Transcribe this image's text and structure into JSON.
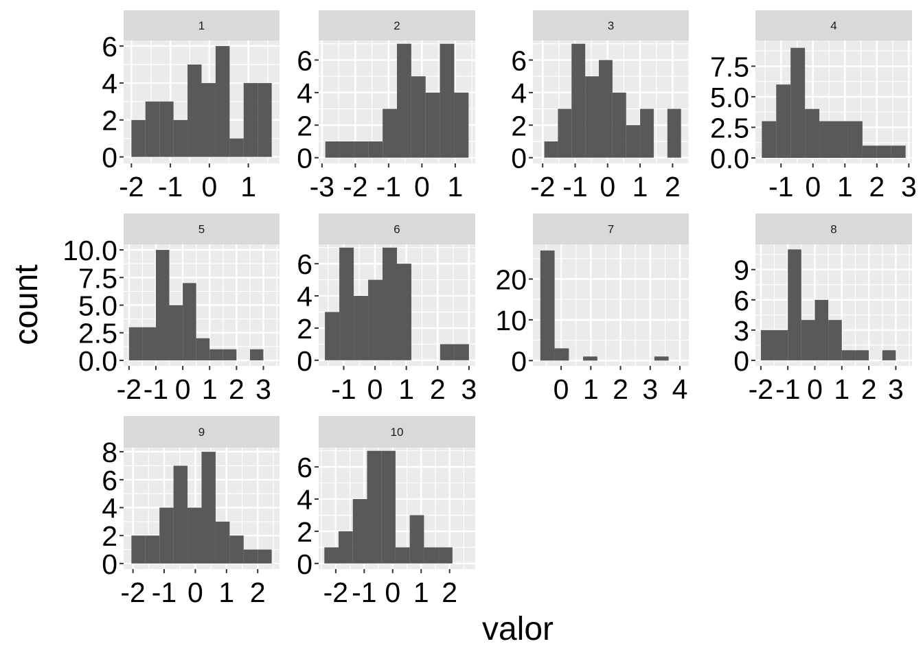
{
  "figure": {
    "xlabel": "valor",
    "ylabel": "count",
    "colors": {
      "panel_bg": "#ebebeb",
      "grid": "#ffffff",
      "strip_bg": "#d9d9d9",
      "bar": "#595959",
      "tick_text": "#000000",
      "strip_text": "#1a1a1a"
    }
  },
  "chart_data": [
    {
      "type": "bar",
      "panel": "1",
      "xlim": [
        -2.2,
        1.8
      ],
      "ylim": [
        -0.35,
        6.3
      ],
      "xticks": [
        -2,
        -1,
        0,
        1
      ],
      "xtick_labels": [
        "-2",
        "-1",
        "0",
        "1"
      ],
      "yticks": [
        0,
        2,
        4,
        6
      ],
      "ytick_labels": [
        "0",
        "2",
        "4",
        "6"
      ],
      "bins": [
        -2.0,
        -1.64,
        -1.28,
        -0.92,
        -0.56,
        -0.2,
        0.16,
        0.52,
        0.88,
        1.24,
        1.6
      ],
      "counts": [
        2,
        3,
        3,
        2,
        5,
        4,
        6,
        1,
        4,
        4
      ]
    },
    {
      "type": "bar",
      "panel": "2",
      "xlim": [
        -3.1,
        1.6
      ],
      "ylim": [
        -0.35,
        7.2
      ],
      "xticks": [
        -3,
        -2,
        -1,
        0,
        1
      ],
      "xtick_labels": [
        "-3",
        "-2",
        "-1",
        "0",
        "1"
      ],
      "yticks": [
        0,
        2,
        4,
        6
      ],
      "ytick_labels": [
        "0",
        "2",
        "4",
        "6"
      ],
      "bins": [
        -2.9,
        -2.47,
        -2.04,
        -1.61,
        -1.18,
        -0.75,
        -0.32,
        0.11,
        0.54,
        0.97,
        1.4
      ],
      "counts": [
        1,
        1,
        1,
        1,
        3,
        7,
        5,
        4,
        7,
        4
      ]
    },
    {
      "type": "bar",
      "panel": "3",
      "xlim": [
        -2.3,
        2.5
      ],
      "ylim": [
        -0.35,
        7.2
      ],
      "xticks": [
        -2,
        -1,
        0,
        1,
        2
      ],
      "xtick_labels": [
        "-2",
        "-1",
        "0",
        "1",
        "2"
      ],
      "yticks": [
        0,
        2,
        4,
        6
      ],
      "ytick_labels": [
        "0",
        "2",
        "4",
        "6"
      ],
      "bins": [
        -1.95,
        -1.53,
        -1.11,
        -0.69,
        -0.27,
        0.15,
        0.57,
        1.0,
        1.42,
        1.84,
        2.26
      ],
      "counts": [
        1,
        3,
        7,
        5,
        6,
        4,
        2,
        3,
        0,
        3
      ]
    },
    {
      "type": "bar",
      "panel": "4",
      "xlim": [
        -1.8,
        3.1
      ],
      "ylim": [
        -0.45,
        9.6
      ],
      "xticks": [
        -1,
        0,
        1,
        2,
        3
      ],
      "xtick_labels": [
        "-1",
        "0",
        "1",
        "2",
        "3"
      ],
      "yticks": [
        0,
        2.5,
        5,
        7.5
      ],
      "ytick_labels": [
        "0.0",
        "2.5",
        "5.0",
        "7.5"
      ],
      "bins": [
        -1.6,
        -1.15,
        -0.7,
        -0.25,
        0.2,
        0.65,
        1.1,
        1.55,
        2.0,
        2.45,
        2.9
      ],
      "counts": [
        3,
        6,
        9,
        4,
        3,
        3,
        3,
        1,
        1,
        1
      ]
    },
    {
      "type": "bar",
      "panel": "5",
      "xlim": [
        -2.2,
        3.6
      ],
      "ylim": [
        -0.5,
        10.5
      ],
      "xticks": [
        -2,
        -1,
        0,
        1,
        2,
        3
      ],
      "xtick_labels": [
        "-2",
        "-1",
        "0",
        "1",
        "2",
        "3"
      ],
      "yticks": [
        0,
        2.5,
        5,
        7.5,
        10
      ],
      "ytick_labels": [
        "0.0",
        "2.5",
        "5.0",
        "7.5",
        "10.0"
      ],
      "bins": [
        -2.0,
        -1.5,
        -1.0,
        -0.5,
        0.0,
        0.5,
        1.0,
        1.5,
        2.0,
        2.5,
        3.0,
        3.5
      ],
      "counts": [
        3,
        3,
        10,
        5,
        7,
        2,
        1,
        1,
        0,
        1,
        0
      ]
    },
    {
      "type": "bar",
      "panel": "6",
      "xlim": [
        -1.8,
        3.2
      ],
      "ylim": [
        -0.35,
        7.2
      ],
      "xticks": [
        -1,
        0,
        1,
        2,
        3
      ],
      "xtick_labels": [
        "-1",
        "0",
        "1",
        "2",
        "3"
      ],
      "yticks": [
        0,
        2,
        4,
        6
      ],
      "ytick_labels": [
        "0",
        "2",
        "4",
        "6"
      ],
      "bins": [
        -1.6,
        -1.14,
        -0.68,
        -0.22,
        0.24,
        0.7,
        1.16,
        1.62,
        2.08,
        2.54,
        3.0
      ],
      "counts": [
        3,
        7,
        4,
        5,
        7,
        6,
        0,
        0,
        1,
        1
      ]
    },
    {
      "type": "bar",
      "panel": "7",
      "xlim": [
        -0.95,
        4.3
      ],
      "ylim": [
        -1.3,
        28.5
      ],
      "xticks": [
        0,
        1,
        2,
        3,
        4
      ],
      "xtick_labels": [
        "0",
        "1",
        "2",
        "3",
        "4"
      ],
      "yticks": [
        0,
        10,
        20
      ],
      "ytick_labels": [
        "0",
        "10",
        "20"
      ],
      "bins": [
        -0.7,
        -0.22,
        0.26,
        0.74,
        1.22,
        1.7,
        2.18,
        2.66,
        3.14,
        3.62,
        4.1
      ],
      "counts": [
        27,
        3,
        0,
        1,
        0,
        0,
        0,
        0,
        1,
        0
      ]
    },
    {
      "type": "bar",
      "panel": "8",
      "xlim": [
        -2.2,
        3.6
      ],
      "ylim": [
        -0.55,
        11.5
      ],
      "xticks": [
        -2,
        -1,
        0,
        1,
        2,
        3
      ],
      "xtick_labels": [
        "-2",
        "-1",
        "0",
        "1",
        "2",
        "3"
      ],
      "yticks": [
        0,
        3,
        6,
        9
      ],
      "ytick_labels": [
        "0",
        "3",
        "6",
        "9"
      ],
      "bins": [
        -2.0,
        -1.5,
        -1.0,
        -0.5,
        0.0,
        0.5,
        1.0,
        1.5,
        2.0,
        2.5,
        3.0,
        3.5
      ],
      "counts": [
        3,
        3,
        11,
        4,
        6,
        4,
        1,
        1,
        0,
        1,
        0
      ]
    },
    {
      "type": "bar",
      "panel": "9",
      "xlim": [
        -2.3,
        2.7
      ],
      "ylim": [
        -0.4,
        8.3
      ],
      "xticks": [
        -2,
        -1,
        0,
        1,
        2
      ],
      "xtick_labels": [
        "-2",
        "-1",
        "0",
        "1",
        "2"
      ],
      "yticks": [
        0,
        2,
        4,
        6,
        8
      ],
      "ytick_labels": [
        "0",
        "2",
        "4",
        "6",
        "8"
      ],
      "bins": [
        -2.05,
        -1.6,
        -1.15,
        -0.7,
        -0.25,
        0.2,
        0.65,
        1.1,
        1.55,
        2.0,
        2.45
      ],
      "counts": [
        2,
        2,
        4,
        7,
        4,
        8,
        3,
        2,
        1,
        1
      ]
    },
    {
      "type": "bar",
      "panel": "10",
      "xlim": [
        -2.6,
        2.9
      ],
      "ylim": [
        -0.35,
        7.2
      ],
      "xticks": [
        -2,
        -1,
        0,
        1,
        2
      ],
      "xtick_labels": [
        "-2",
        "-1",
        "0",
        "1",
        "2"
      ],
      "yticks": [
        0,
        2,
        4,
        6
      ],
      "ytick_labels": [
        "0",
        "2",
        "4",
        "6"
      ],
      "bins": [
        -2.4,
        -1.9,
        -1.4,
        -0.9,
        -0.4,
        0.1,
        0.6,
        1.1,
        1.6,
        2.1,
        2.6
      ],
      "counts": [
        1,
        2,
        4,
        7,
        7,
        1,
        3,
        1,
        1,
        0
      ]
    }
  ]
}
